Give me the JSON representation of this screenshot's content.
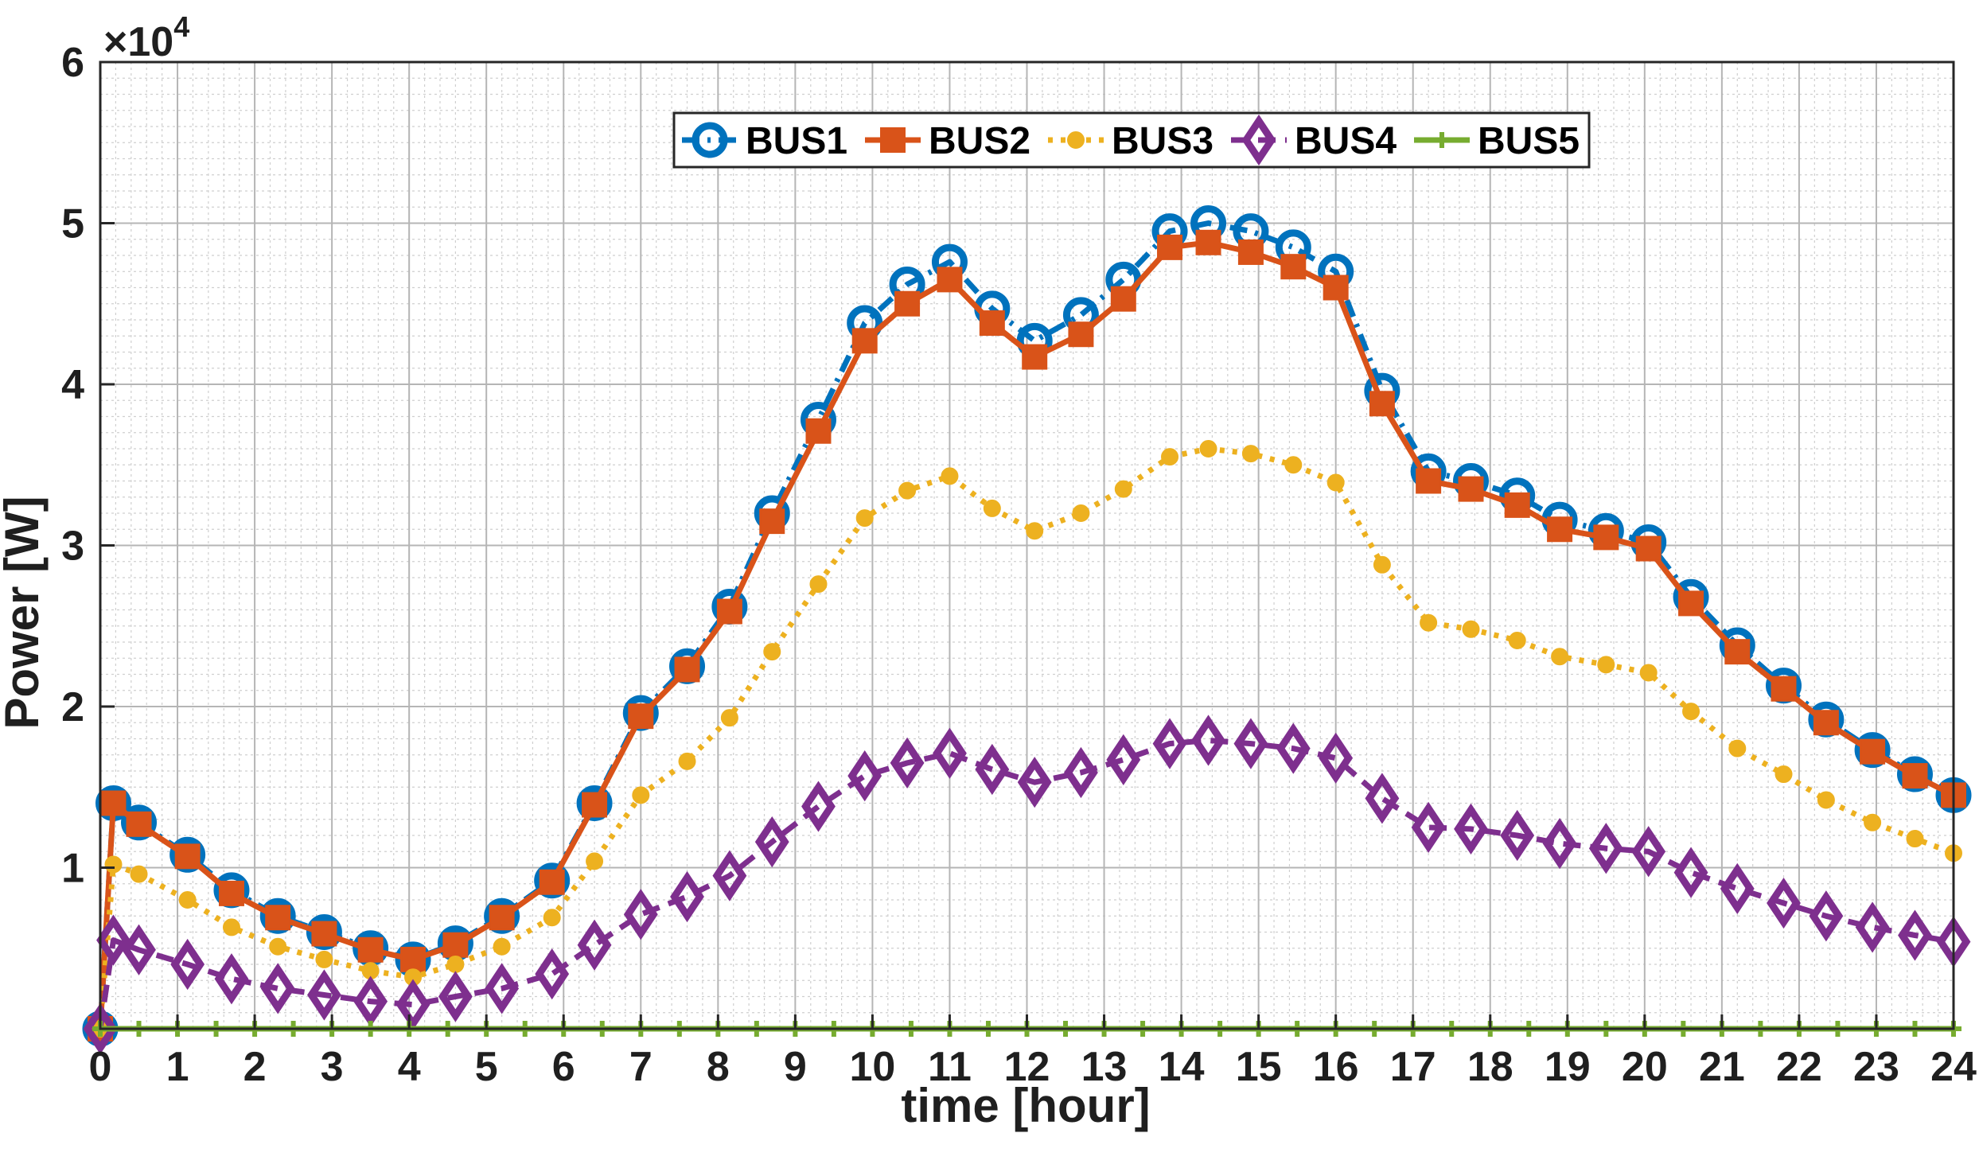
{
  "chart_data": {
    "type": "line",
    "title": "",
    "xlabel": "time [hour]",
    "ylabel": "Power [W]",
    "y_exponent_label": "×10",
    "y_exponent_power": "4",
    "xlim": [
      0,
      24
    ],
    "ylim": [
      0,
      6
    ],
    "xticks": [
      "0",
      "1",
      "2",
      "3",
      "4",
      "5",
      "6",
      "7",
      "8",
      "9",
      "10",
      "11",
      "12",
      "13",
      "14",
      "15",
      "16",
      "17",
      "18",
      "19",
      "20",
      "21",
      "22",
      "23",
      "24"
    ],
    "yticks": [
      {
        "v": 1,
        "label": "1"
      },
      {
        "v": 2,
        "label": "2"
      },
      {
        "v": 3,
        "label": "3"
      },
      {
        "v": 4,
        "label": "4"
      },
      {
        "v": 5,
        "label": "5"
      },
      {
        "v": 6,
        "label": "6"
      }
    ],
    "grid": true,
    "minor_grid": true,
    "legend_position": "top-center",
    "x": [
      0,
      0.17,
      0.5,
      1.13,
      1.7,
      2.3,
      2.9,
      3.5,
      4.05,
      4.6,
      5.2,
      5.85,
      6.4,
      7.0,
      7.6,
      8.15,
      8.7,
      9.3,
      9.9,
      10.45,
      11.0,
      11.55,
      12.1,
      12.7,
      13.25,
      13.85,
      14.35,
      14.9,
      15.45,
      16.0,
      16.6,
      17.2,
      17.75,
      18.35,
      18.9,
      19.5,
      20.05,
      20.6,
      21.2,
      21.8,
      22.35,
      22.95,
      23.5,
      24.0
    ],
    "series": [
      {
        "name": "BUS1",
        "color": "#0072BD",
        "dash": "22,10,4,10",
        "marker": "circle-open",
        "values": [
          0,
          1.4,
          1.28,
          1.08,
          0.86,
          0.7,
          0.6,
          0.5,
          0.43,
          0.53,
          0.7,
          0.92,
          1.4,
          1.96,
          2.25,
          2.62,
          3.2,
          3.78,
          4.38,
          4.62,
          4.76,
          4.47,
          4.27,
          4.43,
          4.65,
          4.95,
          5.0,
          4.95,
          4.85,
          4.7,
          3.96,
          3.46,
          3.4,
          3.31,
          3.16,
          3.09,
          3.02,
          2.68,
          2.38,
          2.13,
          1.92,
          1.73,
          1.58,
          1.45
        ]
      },
      {
        "name": "BUS2",
        "color": "#D95319",
        "dash": "",
        "marker": "square",
        "values": [
          0,
          1.4,
          1.27,
          1.07,
          0.84,
          0.69,
          0.59,
          0.49,
          0.43,
          0.52,
          0.69,
          0.91,
          1.39,
          1.94,
          2.23,
          2.59,
          3.15,
          3.71,
          4.27,
          4.5,
          4.65,
          4.38,
          4.17,
          4.31,
          4.53,
          4.85,
          4.88,
          4.82,
          4.73,
          4.6,
          3.88,
          3.4,
          3.35,
          3.25,
          3.1,
          3.05,
          2.98,
          2.64,
          2.34,
          2.11,
          1.9,
          1.72,
          1.57,
          1.45
        ]
      },
      {
        "name": "BUS3",
        "color": "#EDB120",
        "dash": "6,10",
        "marker": "circle-filled",
        "values": [
          0,
          1.02,
          0.96,
          0.8,
          0.63,
          0.51,
          0.43,
          0.36,
          0.32,
          0.4,
          0.51,
          0.69,
          1.04,
          1.45,
          1.66,
          1.93,
          2.34,
          2.76,
          3.17,
          3.34,
          3.43,
          3.23,
          3.09,
          3.2,
          3.35,
          3.55,
          3.6,
          3.57,
          3.5,
          3.39,
          2.88,
          2.52,
          2.48,
          2.41,
          2.31,
          2.26,
          2.21,
          1.97,
          1.74,
          1.58,
          1.42,
          1.28,
          1.18,
          1.09
        ]
      },
      {
        "name": "BUS4",
        "color": "#7E2F8E",
        "dash": "22,12",
        "marker": "diamond",
        "values": [
          0,
          0.55,
          0.49,
          0.4,
          0.31,
          0.25,
          0.21,
          0.17,
          0.15,
          0.2,
          0.25,
          0.34,
          0.52,
          0.71,
          0.82,
          0.95,
          1.16,
          1.38,
          1.57,
          1.65,
          1.71,
          1.61,
          1.53,
          1.59,
          1.67,
          1.77,
          1.79,
          1.77,
          1.74,
          1.68,
          1.43,
          1.25,
          1.24,
          1.2,
          1.15,
          1.12,
          1.1,
          0.97,
          0.87,
          0.78,
          0.7,
          0.63,
          0.58,
          0.54
        ]
      },
      {
        "name": "BUS5",
        "color": "#77AC30",
        "dash": "",
        "marker": "plus",
        "values": [
          0,
          0,
          0,
          0,
          0,
          0,
          0,
          0,
          0,
          0,
          0,
          0,
          0,
          0,
          0,
          0,
          0,
          0,
          0,
          0,
          0,
          0,
          0,
          0,
          0,
          0,
          0,
          0,
          0,
          0,
          0,
          0,
          0,
          0,
          0,
          0,
          0,
          0,
          0,
          0,
          0,
          0,
          0,
          0
        ]
      }
    ]
  }
}
